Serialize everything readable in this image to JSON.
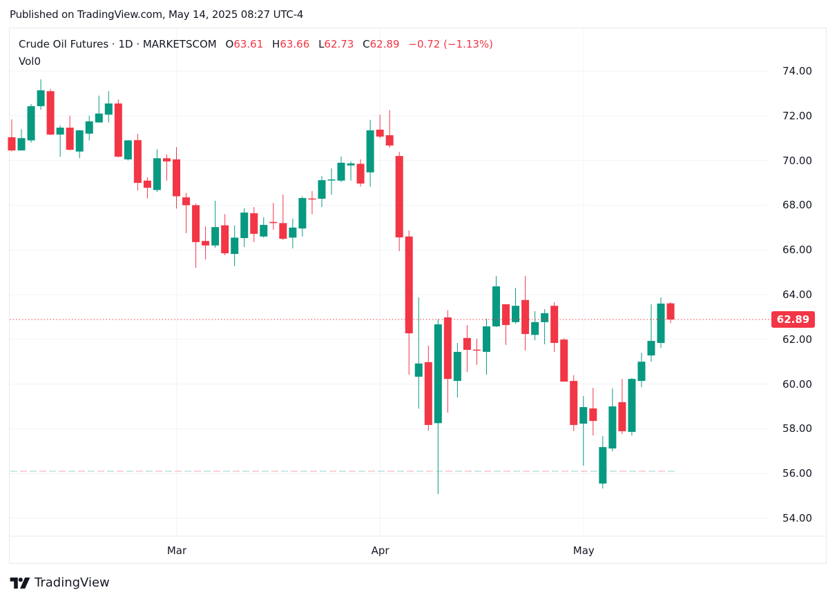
{
  "header": {
    "published": "Published on TradingView.com, May 14, 2025 08:27 UTC-4"
  },
  "legend": {
    "symbol": "Crude Oil Futures · 1D · MARKETSCOM",
    "o_label": "O",
    "o_value": "63.61",
    "h_label": "H",
    "h_value": "63.66",
    "l_label": "L",
    "l_value": "62.73",
    "c_label": "C",
    "c_value": "62.89",
    "change": "−0.72 (−1.13%)",
    "vol_label": "Vol",
    "vol_value": "0"
  },
  "price_tag": "62.89",
  "brand": {
    "name": "TradingView",
    "icon": "tradingview-logo-icon"
  },
  "colors": {
    "up": "#089981",
    "down": "#f23645",
    "grid": "#f0f3fa",
    "text": "#131722"
  },
  "chart_data": {
    "type": "candlestick",
    "title": "Crude Oil Futures · 1D · MARKETSCOM",
    "xlabel": "",
    "ylabel": "",
    "ylim": [
      53,
      75.5
    ],
    "y_ticks": [
      "74.00",
      "72.00",
      "70.00",
      "68.00",
      "66.00",
      "64.00",
      "62.00",
      "60.00",
      "58.00",
      "56.00",
      "54.00"
    ],
    "x_ticks": [
      {
        "label": "Mar",
        "index": 17
      },
      {
        "label": "Apr",
        "index": 38
      },
      {
        "label": "May",
        "index": 59
      }
    ],
    "grid": true,
    "last_price": 62.89,
    "horizontal_line": 56.1,
    "candles": [
      [
        71.04,
        71.84,
        70.41,
        70.45
      ],
      [
        70.45,
        71.4,
        70.45,
        71.0
      ],
      [
        70.9,
        72.52,
        70.8,
        72.43
      ],
      [
        72.43,
        73.63,
        72.27,
        73.14
      ],
      [
        73.1,
        73.2,
        71.13,
        71.16
      ],
      [
        71.16,
        71.56,
        70.17,
        71.47
      ],
      [
        71.47,
        72.0,
        70.45,
        70.48
      ],
      [
        70.4,
        71.37,
        70.1,
        71.35
      ],
      [
        71.2,
        72.0,
        70.9,
        71.75
      ],
      [
        71.7,
        72.9,
        71.7,
        72.1
      ],
      [
        72.05,
        73.1,
        71.7,
        72.55
      ],
      [
        72.55,
        72.73,
        70.14,
        70.17
      ],
      [
        70.05,
        70.92,
        70.0,
        70.9
      ],
      [
        70.91,
        71.2,
        68.66,
        69.0
      ],
      [
        69.1,
        69.25,
        68.3,
        68.78
      ],
      [
        68.68,
        70.5,
        68.6,
        70.1
      ],
      [
        70.1,
        70.27,
        69.1,
        69.96
      ],
      [
        70.05,
        70.6,
        67.85,
        68.4
      ],
      [
        68.35,
        68.55,
        66.75,
        68.0
      ],
      [
        68.0,
        68.07,
        65.2,
        66.35
      ],
      [
        66.4,
        67.05,
        65.57,
        66.2
      ],
      [
        66.2,
        68.2,
        66.1,
        67.02
      ],
      [
        67.1,
        67.6,
        65.76,
        65.85
      ],
      [
        65.82,
        67.1,
        65.27,
        66.55
      ],
      [
        66.53,
        67.86,
        66.13,
        67.67
      ],
      [
        67.64,
        67.92,
        66.35,
        66.72
      ],
      [
        66.6,
        67.46,
        66.55,
        67.12
      ],
      [
        67.25,
        68.1,
        66.9,
        67.2
      ],
      [
        67.2,
        68.48,
        66.44,
        66.5
      ],
      [
        66.55,
        67.4,
        66.07,
        67.0
      ],
      [
        66.96,
        68.39,
        66.6,
        68.32
      ],
      [
        68.3,
        68.63,
        67.6,
        68.27
      ],
      [
        68.29,
        69.3,
        67.92,
        69.12
      ],
      [
        69.12,
        69.65,
        68.47,
        69.15
      ],
      [
        69.1,
        70.18,
        69.04,
        69.9
      ],
      [
        69.78,
        69.96,
        69.1,
        69.87
      ],
      [
        69.85,
        70.05,
        68.84,
        68.97
      ],
      [
        69.47,
        71.82,
        68.83,
        71.35
      ],
      [
        71.38,
        72.05,
        71.0,
        71.07
      ],
      [
        71.13,
        72.25,
        70.57,
        70.67
      ],
      [
        70.2,
        70.38,
        65.95,
        66.56
      ],
      [
        66.6,
        66.87,
        60.42,
        62.27
      ],
      [
        60.33,
        63.88,
        58.9,
        60.92
      ],
      [
        60.98,
        61.72,
        57.92,
        58.17
      ],
      [
        58.25,
        62.9,
        55.08,
        62.67
      ],
      [
        62.98,
        63.3,
        58.72,
        60.23
      ],
      [
        60.14,
        61.84,
        59.4,
        61.44
      ],
      [
        62.06,
        62.64,
        60.54,
        61.53
      ],
      [
        61.54,
        62.03,
        60.86,
        61.5
      ],
      [
        61.44,
        62.92,
        60.42,
        62.58
      ],
      [
        62.58,
        64.83,
        62.55,
        64.37
      ],
      [
        63.57,
        63.57,
        61.75,
        62.64
      ],
      [
        62.77,
        64.3,
        62.7,
        63.5
      ],
      [
        63.76,
        64.83,
        61.5,
        62.24
      ],
      [
        62.2,
        63.26,
        61.96,
        62.77
      ],
      [
        62.77,
        63.35,
        61.78,
        63.17
      ],
      [
        63.5,
        63.66,
        61.44,
        61.84
      ],
      [
        61.99,
        62.05,
        60.11,
        60.11
      ],
      [
        60.14,
        60.4,
        57.89,
        58.17
      ],
      [
        58.23,
        59.46,
        56.35,
        58.97
      ],
      [
        58.91,
        59.83,
        57.7,
        58.35
      ],
      [
        55.55,
        57.67,
        55.33,
        57.18
      ],
      [
        57.12,
        59.8,
        56.99,
        59.0
      ],
      [
        59.19,
        60.23,
        57.77,
        57.89
      ],
      [
        57.86,
        60.27,
        57.7,
        60.23
      ],
      [
        60.14,
        61.4,
        59.86,
        61.0
      ],
      [
        61.28,
        63.57,
        61.0,
        61.93
      ],
      [
        61.84,
        63.88,
        61.62,
        63.6
      ],
      [
        63.61,
        63.66,
        62.73,
        62.89
      ]
    ],
    "candle_format": [
      "open",
      "high",
      "low",
      "close"
    ]
  }
}
